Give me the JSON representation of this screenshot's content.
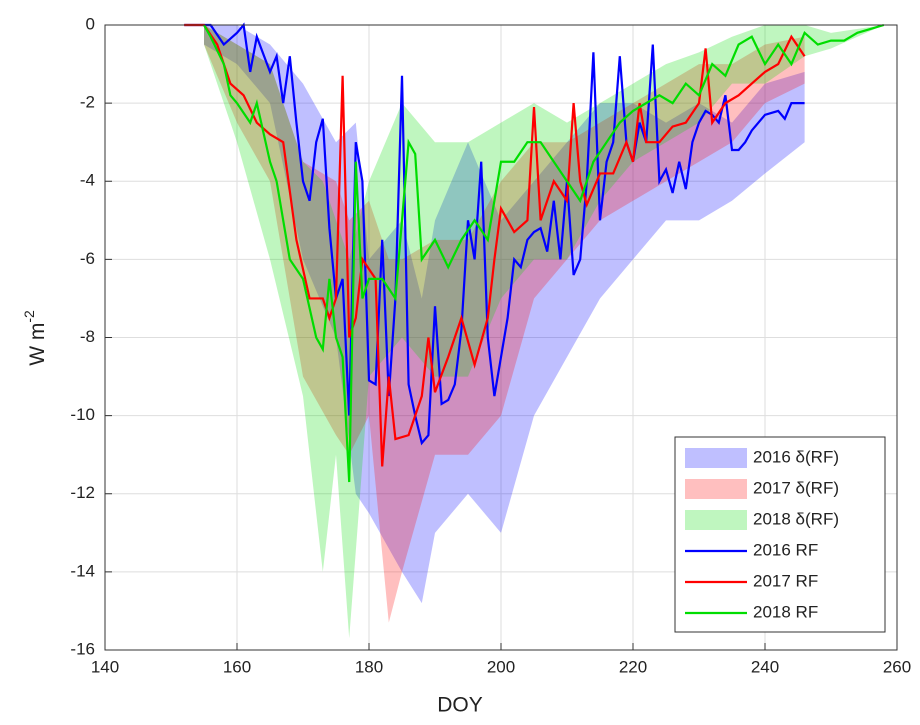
{
  "chart_data": {
    "type": "line",
    "xlabel": "DOY",
    "ylabel": "W m",
    "ylabel_superscript": "-2",
    "xlim": [
      140,
      260
    ],
    "ylim": [
      -16,
      0
    ],
    "xticks": [
      140,
      160,
      180,
      200,
      220,
      240,
      260
    ],
    "yticks": [
      0,
      -2,
      -4,
      -6,
      -8,
      -10,
      -12,
      -14,
      -16
    ],
    "grid": true,
    "bands": [
      {
        "name": "2016 δ(RF)",
        "color": "rgba(0,0,255,0.25)",
        "x": [
          155,
          160,
          165,
          170,
          175,
          178,
          180,
          185,
          188,
          190,
          195,
          200,
          205,
          210,
          215,
          220,
          225,
          230,
          235,
          240,
          246
        ],
        "upper": [
          0,
          0,
          -0.5,
          -1.5,
          -3,
          -2.5,
          -6,
          -5,
          -7,
          -5,
          -3,
          -5,
          -4,
          -3,
          -2,
          -2,
          -2.5,
          -2,
          -2.5,
          -1.5,
          -1.2
        ],
        "lower": [
          -0.5,
          -1,
          -2,
          -6,
          -8,
          -12,
          -12.5,
          -14,
          -14.8,
          -13,
          -12,
          -13,
          -10,
          -8.5,
          -7,
          -6,
          -5,
          -5,
          -4.5,
          -3.8,
          -3
        ]
      },
      {
        "name": "2017 δ(RF)",
        "color": "rgba(255,0,0,0.25)",
        "x": [
          155,
          160,
          165,
          170,
          175,
          177,
          180,
          183,
          185,
          190,
          195,
          200,
          205,
          210,
          215,
          220,
          225,
          230,
          235,
          240,
          246
        ],
        "upper": [
          0,
          -0.5,
          -1,
          -3.5,
          -4,
          -5,
          -4.5,
          -6,
          -6,
          -5.5,
          -5.5,
          -4,
          -3,
          -3,
          -2.5,
          -2,
          -1.5,
          -1,
          -1,
          -0.5,
          -0.3
        ],
        "lower": [
          -0.5,
          -2.5,
          -4,
          -9,
          -10.5,
          -11,
          -10,
          -15.3,
          -14,
          -11,
          -11,
          -10,
          -7,
          -6,
          -5,
          -4.5,
          -4,
          -3.5,
          -3,
          -2,
          -1.5
        ]
      },
      {
        "name": "2018 δ(RF)",
        "color": "rgba(0,220,0,0.25)",
        "x": [
          155,
          160,
          165,
          170,
          173,
          175,
          177,
          180,
          185,
          190,
          195,
          200,
          205,
          210,
          215,
          220,
          225,
          230,
          235,
          240,
          246,
          250,
          258
        ],
        "upper": [
          0,
          -0.5,
          -1,
          -3.5,
          -4,
          -5,
          -6,
          -4,
          -2,
          -3,
          -3,
          -2.5,
          -2,
          -2.5,
          -2,
          -1.5,
          -1,
          -0.7,
          -0.3,
          0,
          0,
          -0.2,
          0
        ],
        "lower": [
          -0.5,
          -3,
          -6,
          -9.5,
          -14,
          -11,
          -15.7,
          -9,
          -8,
          -9,
          -9,
          -7,
          -6,
          -6,
          -4.5,
          -3.5,
          -3,
          -2.5,
          -1.5,
          -1.5,
          -0.8,
          -0.6,
          0
        ]
      }
    ],
    "series": [
      {
        "name": "2016 RF",
        "color": "#0000ff",
        "x": [
          152,
          154,
          156,
          158,
          160,
          161,
          162,
          163,
          165,
          166,
          167,
          168,
          169,
          170,
          171,
          172,
          173,
          174,
          175,
          176,
          177,
          178,
          179,
          180,
          181,
          182,
          183,
          184,
          185,
          186,
          187,
          188,
          189,
          190,
          191,
          192,
          193,
          194,
          195,
          196,
          197,
          198,
          199,
          200,
          201,
          202,
          203,
          204,
          205,
          206,
          207,
          208,
          209,
          210,
          211,
          212,
          213,
          214,
          215,
          216,
          217,
          218,
          219,
          220,
          221,
          222,
          223,
          224,
          225,
          226,
          227,
          228,
          229,
          230,
          231,
          232,
          233,
          234,
          235,
          236,
          237,
          238,
          240,
          242,
          243,
          244,
          246
        ],
        "values": [
          0,
          0,
          0,
          -0.5,
          -0.2,
          0,
          -1.2,
          -0.3,
          -1.2,
          -0.8,
          -2,
          -0.8,
          -2.5,
          -4,
          -4.5,
          -3,
          -2.4,
          -5.2,
          -7,
          -6.5,
          -10,
          -3,
          -4,
          -9.1,
          -9.2,
          -5.5,
          -9.5,
          -7,
          -1.3,
          -9.2,
          -10,
          -10.7,
          -10.5,
          -7.2,
          -9.7,
          -9.6,
          -9.2,
          -7.8,
          -5,
          -6,
          -3.5,
          -8,
          -9.5,
          -8.5,
          -7.5,
          -6,
          -6.2,
          -5.5,
          -5.3,
          -5.2,
          -5.8,
          -4.5,
          -6,
          -4,
          -6.4,
          -6,
          -4,
          -0.7,
          -5,
          -3.5,
          -3,
          -0.8,
          -3,
          -3.5,
          -2.5,
          -3,
          -0.5,
          -4,
          -3.7,
          -4.3,
          -3.5,
          -4.2,
          -3,
          -2.5,
          -2.2,
          -2.3,
          -2.5,
          -1.8,
          -3.2,
          -3.2,
          -3,
          -2.7,
          -2.3,
          -2.2,
          -2.4,
          -2,
          -2
        ]
      },
      {
        "name": "2017 RF",
        "color": "#ff0000",
        "x": [
          152,
          155,
          157,
          159,
          161,
          163,
          165,
          167,
          169,
          171,
          173,
          174,
          175,
          176,
          177,
          178,
          179,
          181,
          182,
          183,
          184,
          186,
          188,
          189,
          190,
          192,
          194,
          196,
          198,
          199,
          200,
          202,
          204,
          205,
          206,
          208,
          210,
          211,
          212,
          213,
          215,
          217,
          219,
          220,
          221,
          222,
          224,
          226,
          228,
          230,
          231,
          232,
          234,
          236,
          238,
          240,
          242,
          244,
          246
        ],
        "values": [
          0,
          0,
          -0.5,
          -1.5,
          -1.8,
          -2.5,
          -2.8,
          -3,
          -5.5,
          -7,
          -7,
          -7.5,
          -7,
          -1.3,
          -8,
          -7.5,
          -6,
          -6.5,
          -11.3,
          -9,
          -10.6,
          -10.5,
          -9.5,
          -8,
          -9.4,
          -8.5,
          -7.5,
          -8.7,
          -7.5,
          -6,
          -4.7,
          -5.3,
          -5,
          -2.1,
          -5,
          -4,
          -4.5,
          -2,
          -4,
          -4.6,
          -3.8,
          -3.8,
          -3,
          -3.5,
          -2,
          -3,
          -3,
          -2.6,
          -2.5,
          -2,
          -0.6,
          -2.5,
          -2,
          -1.8,
          -1.5,
          -1.2,
          -1,
          -0.3,
          -0.8
        ]
      },
      {
        "name": "2018 RF",
        "color": "#00dd00",
        "x": [
          155,
          156,
          158,
          159,
          160,
          162,
          163,
          165,
          166,
          167,
          168,
          170,
          172,
          173,
          174,
          175,
          176,
          177,
          178,
          179,
          180,
          182,
          184,
          186,
          187,
          188,
          190,
          192,
          194,
          196,
          198,
          200,
          202,
          204,
          206,
          208,
          210,
          212,
          214,
          216,
          218,
          220,
          222,
          224,
          226,
          228,
          230,
          232,
          234,
          236,
          238,
          240,
          242,
          244,
          246,
          248,
          250,
          252,
          254,
          256,
          258
        ],
        "values": [
          0,
          -0.3,
          -1,
          -1.8,
          -2,
          -2.5,
          -2,
          -3.5,
          -4,
          -5,
          -6,
          -6.5,
          -8,
          -8.3,
          -6.5,
          -8,
          -8.5,
          -11.7,
          -3.5,
          -7,
          -6.5,
          -6.5,
          -7,
          -3,
          -3.3,
          -6,
          -5.5,
          -6.2,
          -5.5,
          -5,
          -5.5,
          -3.5,
          -3.5,
          -3,
          -3,
          -3.5,
          -4,
          -4.5,
          -3.5,
          -3,
          -2.5,
          -2.2,
          -2,
          -1.8,
          -2,
          -1.5,
          -1.8,
          -1,
          -1.3,
          -0.5,
          -0.3,
          -1,
          -0.5,
          -1,
          -0.2,
          -0.5,
          -0.4,
          -0.4,
          -0.2,
          -0.1,
          0
        ]
      }
    ]
  }
}
